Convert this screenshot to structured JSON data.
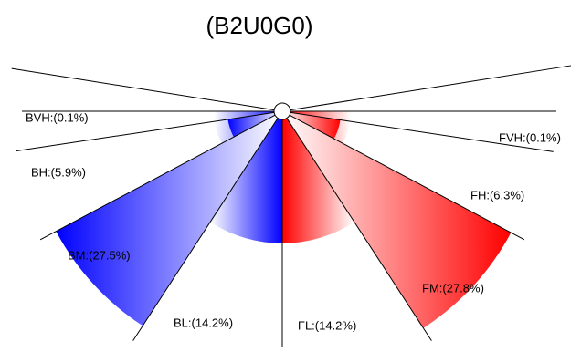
{
  "chart_data": {
    "type": "polar",
    "title": "(B2U0G0)",
    "sectors": [
      {
        "label": "BVH:(0.1%)",
        "value": 0.1,
        "color": "#0000ff"
      },
      {
        "label": "BH:(5.9%)",
        "value": 5.9,
        "color": "#0000ff"
      },
      {
        "label": "BM:(27.5%)",
        "value": 27.5,
        "color": "#0000ff"
      },
      {
        "label": "BL:(14.2%)",
        "value": 14.2,
        "color": "#0000ff"
      },
      {
        "label": "FL:(14.2%)",
        "value": 14.2,
        "color": "#ff0000"
      },
      {
        "label": "FM:(27.8%)",
        "value": 27.8,
        "color": "#ff0000"
      },
      {
        "label": "FH:(6.3%)",
        "value": 6.3,
        "color": "#ff0000"
      },
      {
        "label": "FVH:(0.1%)",
        "value": 0.1,
        "color": "#ff0000"
      }
    ]
  }
}
